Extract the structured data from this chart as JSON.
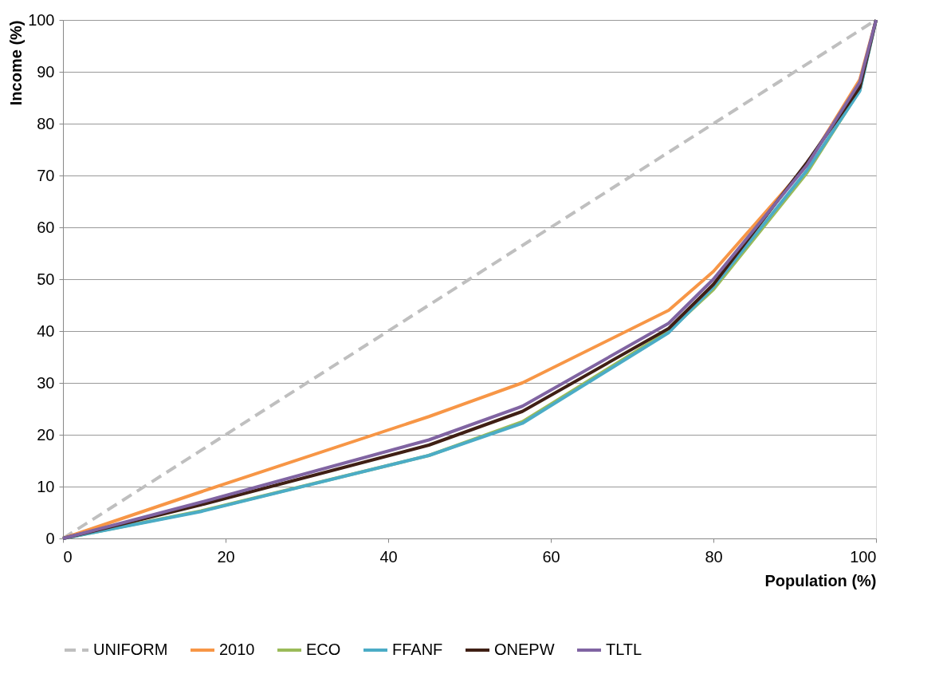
{
  "chart_data": {
    "type": "line",
    "xlabel": "Population (%)",
    "ylabel": "Income (%)",
    "x": [
      0,
      17,
      45,
      56.5,
      74.5,
      80,
      91.5,
      98,
      100
    ],
    "xlim": [
      0,
      100
    ],
    "xticks": [
      0,
      20,
      40,
      60,
      80,
      100
    ],
    "ylim": [
      0,
      100
    ],
    "yticks": [
      0,
      10,
      20,
      30,
      40,
      50,
      60,
      70,
      80,
      90,
      100
    ],
    "grid": "y",
    "legend": "bottom",
    "marker": "none",
    "series": [
      {
        "name": "UNIFORM",
        "color": "#bfbfbf",
        "line_style": "dashed",
        "x": [
          0,
          100
        ],
        "values": [
          0,
          100
        ]
      },
      {
        "name": "2010",
        "color": "#f79646",
        "line_style": "solid",
        "values": [
          0,
          9,
          23.5,
          30,
          44,
          51.5,
          72,
          88.5,
          100
        ]
      },
      {
        "name": "ECO",
        "color": "#9bbb59",
        "line_style": "solid",
        "values": [
          0,
          5.3,
          16,
          22.5,
          40,
          48,
          70.5,
          86.5,
          100
        ]
      },
      {
        "name": "FFANF",
        "color": "#4bacc6",
        "line_style": "solid",
        "values": [
          0,
          5.2,
          16,
          22.2,
          39.7,
          48.5,
          71,
          86.3,
          100
        ]
      },
      {
        "name": "ONEPW",
        "color": "#3f1f14",
        "line_style": "solid",
        "values": [
          0,
          6.5,
          18,
          24.5,
          40.5,
          49,
          72.5,
          87,
          100
        ]
      },
      {
        "name": "TLTL",
        "color": "#8064a2",
        "line_style": "solid",
        "values": [
          0,
          7,
          19,
          25.5,
          41.5,
          50,
          72,
          88,
          100
        ]
      }
    ]
  }
}
